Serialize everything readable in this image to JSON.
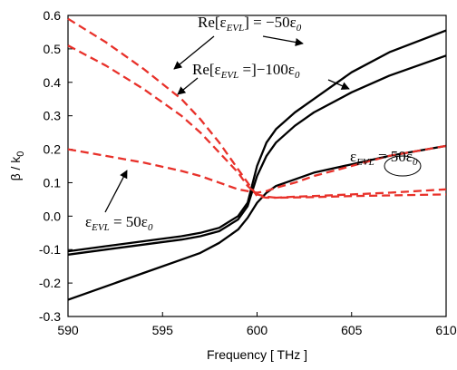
{
  "chart_data": {
    "type": "line",
    "x_label": "Frequency [ THz ]",
    "y_label": [
      "β / k",
      "0"
    ],
    "x": [
      590,
      592,
      594,
      596,
      597,
      598,
      599,
      599.5,
      600,
      600.5,
      601,
      602,
      603,
      605,
      607,
      610
    ],
    "series": [
      {
        "color": "#000000",
        "dash": false,
        "values": [
          -0.105,
          -0.09,
          -0.075,
          -0.06,
          -0.05,
          -0.035,
          0.0,
          0.04,
          0.15,
          0.22,
          0.26,
          0.31,
          0.35,
          0.43,
          0.49,
          0.555
        ]
      },
      {
        "color": "#000000",
        "dash": false,
        "values": [
          -0.115,
          -0.1,
          -0.085,
          -0.07,
          -0.06,
          -0.045,
          -0.01,
          0.03,
          0.12,
          0.18,
          0.22,
          0.27,
          0.31,
          0.37,
          0.42,
          0.48
        ]
      },
      {
        "color": "#000000",
        "dash": false,
        "values": [
          -0.25,
          -0.21,
          -0.17,
          -0.13,
          -0.11,
          -0.08,
          -0.04,
          -0.005,
          0.04,
          0.07,
          0.09,
          0.11,
          0.13,
          0.155,
          0.18,
          0.21
        ]
      },
      {
        "color": "#e8312a",
        "dash": true,
        "values": [
          0.59,
          0.52,
          0.44,
          0.35,
          0.29,
          0.22,
          0.14,
          0.1,
          0.06,
          0.055,
          0.055,
          0.058,
          0.06,
          0.065,
          0.07,
          0.08
        ]
      },
      {
        "color": "#e8312a",
        "dash": true,
        "values": [
          0.51,
          0.45,
          0.38,
          0.3,
          0.25,
          0.19,
          0.13,
          0.09,
          0.065,
          0.058,
          0.055,
          0.056,
          0.057,
          0.06,
          0.062,
          0.065
        ]
      },
      {
        "color": "#e8312a",
        "dash": true,
        "values": [
          0.2,
          0.18,
          0.16,
          0.135,
          0.12,
          0.1,
          0.08,
          0.075,
          0.07,
          0.075,
          0.085,
          0.1,
          0.12,
          0.15,
          0.18,
          0.21
        ]
      }
    ],
    "xlim": [
      590,
      610
    ],
    "xticks": [
      590,
      595,
      600,
      605,
      610
    ],
    "ylim": [
      -0.3,
      0.6
    ],
    "yticks": [
      -0.3,
      -0.2,
      -0.1,
      {
        "value": 0,
        "label": "0.0"
      },
      0.1,
      0.2,
      0.3,
      0.4,
      0.5,
      0.6
    ],
    "annotations": [
      [
        "Re[ε",
        "EVL",
        "] = −50ε",
        "0"
      ],
      [
        "Re[ε",
        "EVL",
        " =]−100ε",
        "0"
      ],
      [
        "ε",
        "EVL",
        " = 50ε",
        "0"
      ],
      [
        "ε",
        "EVL",
        " = 50ε",
        "0"
      ]
    ]
  }
}
